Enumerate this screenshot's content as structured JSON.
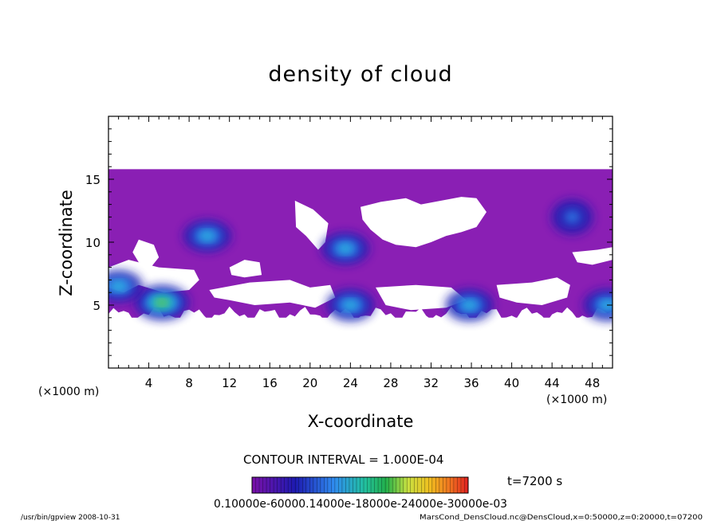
{
  "chart_data": {
    "type": "heatmap",
    "title": "density of cloud",
    "xlabel": "X-coordinate",
    "ylabel": "Z-coordinate",
    "x_unit": "(×1000 m)",
    "y_unit": "(×1000 m)",
    "xlim": [
      0,
      50
    ],
    "ylim": [
      0,
      20
    ],
    "x_ticks": [
      4,
      8,
      12,
      16,
      20,
      24,
      28,
      32,
      36,
      40,
      44,
      48
    ],
    "y_ticks": [
      5,
      10,
      15
    ],
    "contour_interval": "CONTOUR INTERVAL = 1.000E-04",
    "time_label": "t=7200 s",
    "colorbar_labels": "0.10000e-60000.14000e-18000e-24000e-30000e-03",
    "colors": {
      "background_purple": "#8a1fb4",
      "deep_blue": "#1d1ab0",
      "light_blue": "#2f8cf0",
      "cyan": "#26d6d6",
      "green": "#22b04b",
      "yellow": "#e8e44a"
    },
    "cloud_layer": {
      "upper_extent_km": 15.8,
      "lower_extent_km": 4.0
    },
    "dense_cores": [
      {
        "x": 5.3,
        "z": 5.2,
        "level": "high"
      },
      {
        "x": 9.8,
        "z": 10.5,
        "level": "mid"
      },
      {
        "x": 23.5,
        "z": 9.5,
        "level": "mid"
      },
      {
        "x": 24.0,
        "z": 5.0,
        "level": "mid"
      },
      {
        "x": 35.8,
        "z": 5.0,
        "level": "mid"
      },
      {
        "x": 46.0,
        "z": 12.0,
        "level": "low"
      },
      {
        "x": 1.0,
        "z": 6.5,
        "level": "mid"
      },
      {
        "x": 49.5,
        "z": 5.0,
        "level": "mid"
      }
    ]
  },
  "footer": {
    "left": "/usr/bin/gpview   2008-10-31",
    "right": "MarsCond_DensCloud.nc@DensCloud,x=0:50000,z=0:20000,t=07200"
  }
}
